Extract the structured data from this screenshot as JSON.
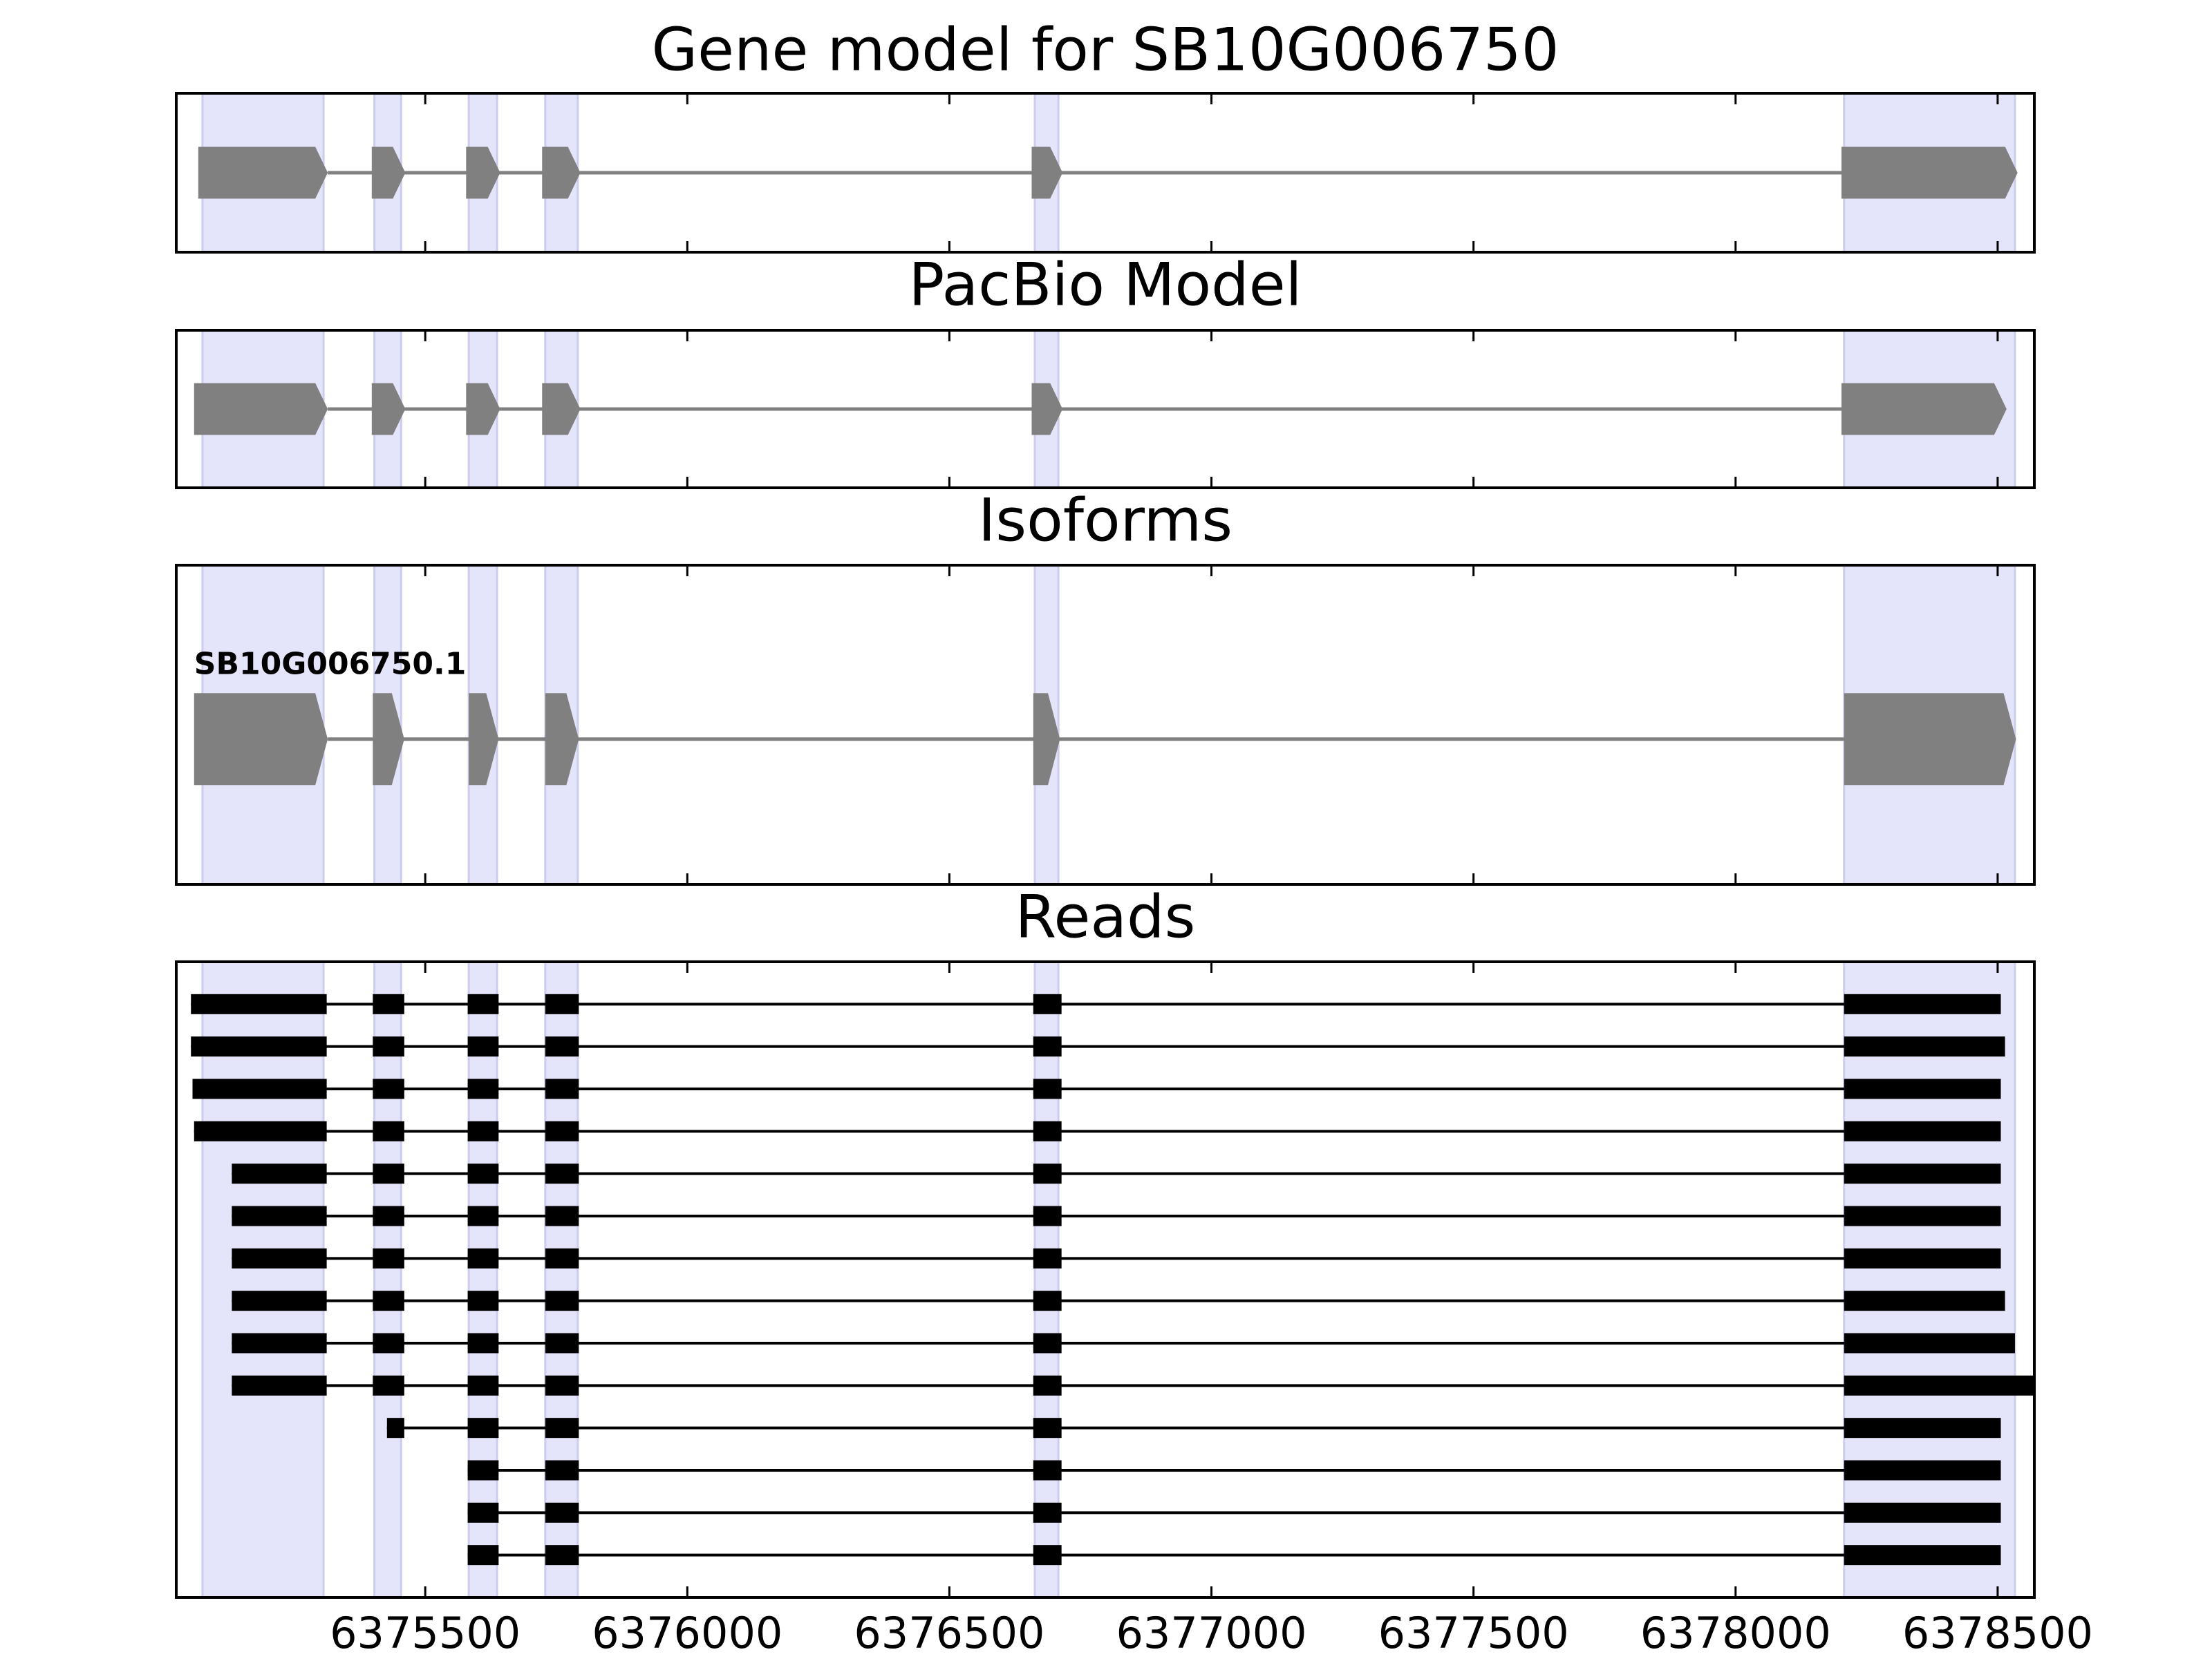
{
  "chart_data": [
    {
      "type": "gene_model",
      "title": "Gene model for SB10G006750",
      "xlim": [
        6375025,
        6378570
      ],
      "xticks": [
        6375500,
        6376000,
        6376500,
        6377000,
        6377500,
        6378000,
        6378500
      ],
      "tick_labels": false,
      "color": "#808080",
      "highlight_color": "#e4e4fa",
      "highlights": [
        [
          6375075,
          6375306
        ],
        [
          6375403,
          6375454
        ],
        [
          6375583,
          6375637
        ],
        [
          6375729,
          6375791
        ],
        [
          6376663,
          6376708
        ],
        [
          6378207,
          6378533
        ]
      ],
      "transcripts": [
        {
          "exons": [
            [
              6375067,
              6375314
            ],
            [
              6375398,
              6375462
            ],
            [
              6375578,
              6375643
            ],
            [
              6375723,
              6375796
            ],
            [
              6376657,
              6376716
            ],
            [
              6378202,
              6378538
            ]
          ]
        }
      ]
    },
    {
      "type": "gene_model",
      "title": "PacBio Model",
      "xlim": [
        6375025,
        6378570
      ],
      "xticks": [
        6375500,
        6376000,
        6376500,
        6377000,
        6377500,
        6378000,
        6378500
      ],
      "tick_labels": false,
      "color": "#808080",
      "highlight_color": "#e4e4fa",
      "highlights": [
        [
          6375075,
          6375306
        ],
        [
          6375403,
          6375454
        ],
        [
          6375583,
          6375637
        ],
        [
          6375729,
          6375791
        ],
        [
          6376663,
          6376708
        ],
        [
          6378207,
          6378533
        ]
      ],
      "transcripts": [
        {
          "exons": [
            [
              6375059,
              6375314
            ],
            [
              6375398,
              6375462
            ],
            [
              6375578,
              6375643
            ],
            [
              6375723,
              6375796
            ],
            [
              6376657,
              6376716
            ],
            [
              6378202,
              6378517
            ]
          ]
        }
      ]
    },
    {
      "type": "gene_model",
      "title": "Isoforms",
      "xlim": [
        6375025,
        6378570
      ],
      "xticks": [
        6375500,
        6376000,
        6376500,
        6377000,
        6377500,
        6378000,
        6378500
      ],
      "tick_labels": false,
      "color": "#808080",
      "highlight_color": "#e4e4fa",
      "highlights": [
        [
          6375075,
          6375306
        ],
        [
          6375403,
          6375454
        ],
        [
          6375583,
          6375637
        ],
        [
          6375729,
          6375791
        ],
        [
          6376663,
          6376708
        ],
        [
          6378207,
          6378533
        ]
      ],
      "transcripts": [
        {
          "name": "SB10G006750.1",
          "exons": [
            [
              6375059,
              6375314
            ],
            [
              6375400,
              6375460
            ],
            [
              6375583,
              6375640
            ],
            [
              6375729,
              6375793
            ],
            [
              6376660,
              6376711
            ],
            [
              6378207,
              6378535
            ]
          ]
        }
      ]
    },
    {
      "type": "reads",
      "title": "Reads",
      "xlim": [
        6375025,
        6378570
      ],
      "xticks": [
        6375500,
        6376000,
        6376500,
        6377000,
        6377500,
        6378000,
        6378500
      ],
      "tick_labels": true,
      "color": "#000000",
      "highlight_color": "#e4e4fa",
      "highlights": [
        [
          6375075,
          6375306
        ],
        [
          6375403,
          6375454
        ],
        [
          6375583,
          6375637
        ],
        [
          6375729,
          6375791
        ],
        [
          6376663,
          6376708
        ],
        [
          6378207,
          6378533
        ]
      ],
      "reads": [
        [
          [
            6375053,
            6375312
          ],
          [
            6375400,
            6375460
          ],
          [
            6375581,
            6375640
          ],
          [
            6375729,
            6375793
          ],
          [
            6376660,
            6376714
          ],
          [
            6378207,
            6378506
          ]
        ],
        [
          [
            6375053,
            6375312
          ],
          [
            6375400,
            6375460
          ],
          [
            6375581,
            6375640
          ],
          [
            6375729,
            6375793
          ],
          [
            6376660,
            6376714
          ],
          [
            6378207,
            6378514
          ]
        ],
        [
          [
            6375056,
            6375312
          ],
          [
            6375400,
            6375460
          ],
          [
            6375581,
            6375640
          ],
          [
            6375729,
            6375793
          ],
          [
            6376660,
            6376714
          ],
          [
            6378207,
            6378506
          ]
        ],
        [
          [
            6375059,
            6375312
          ],
          [
            6375400,
            6375460
          ],
          [
            6375581,
            6375640
          ],
          [
            6375729,
            6375793
          ],
          [
            6376660,
            6376714
          ],
          [
            6378207,
            6378506
          ]
        ],
        [
          [
            6375131,
            6375312
          ],
          [
            6375400,
            6375460
          ],
          [
            6375581,
            6375640
          ],
          [
            6375729,
            6375793
          ],
          [
            6376660,
            6376714
          ],
          [
            6378207,
            6378506
          ]
        ],
        [
          [
            6375131,
            6375312
          ],
          [
            6375400,
            6375460
          ],
          [
            6375581,
            6375640
          ],
          [
            6375729,
            6375793
          ],
          [
            6376660,
            6376714
          ],
          [
            6378207,
            6378506
          ]
        ],
        [
          [
            6375131,
            6375312
          ],
          [
            6375400,
            6375460
          ],
          [
            6375581,
            6375640
          ],
          [
            6375729,
            6375793
          ],
          [
            6376660,
            6376714
          ],
          [
            6378207,
            6378506
          ]
        ],
        [
          [
            6375131,
            6375312
          ],
          [
            6375400,
            6375460
          ],
          [
            6375581,
            6375640
          ],
          [
            6375729,
            6375793
          ],
          [
            6376660,
            6376714
          ],
          [
            6378207,
            6378514
          ]
        ],
        [
          [
            6375131,
            6375312
          ],
          [
            6375400,
            6375460
          ],
          [
            6375581,
            6375640
          ],
          [
            6375729,
            6375793
          ],
          [
            6376660,
            6376714
          ],
          [
            6378207,
            6378533
          ]
        ],
        [
          [
            6375131,
            6375312
          ],
          [
            6375400,
            6375460
          ],
          [
            6375581,
            6375640
          ],
          [
            6375729,
            6375793
          ],
          [
            6376660,
            6376714
          ],
          [
            6378207,
            6378570
          ]
        ],
        [
          [
            6375427,
            6375460
          ],
          [
            6375581,
            6375640
          ],
          [
            6375729,
            6375793
          ],
          [
            6376660,
            6376714
          ],
          [
            6378207,
            6378506
          ]
        ],
        [
          [
            6375581,
            6375640
          ],
          [
            6375729,
            6375793
          ],
          [
            6376660,
            6376714
          ],
          [
            6378207,
            6378506
          ]
        ],
        [
          [
            6375581,
            6375640
          ],
          [
            6375729,
            6375793
          ],
          [
            6376660,
            6376714
          ],
          [
            6378207,
            6378506
          ]
        ],
        [
          [
            6375581,
            6375640
          ],
          [
            6375729,
            6375793
          ],
          [
            6376660,
            6376714
          ],
          [
            6378207,
            6378506
          ]
        ]
      ]
    }
  ]
}
